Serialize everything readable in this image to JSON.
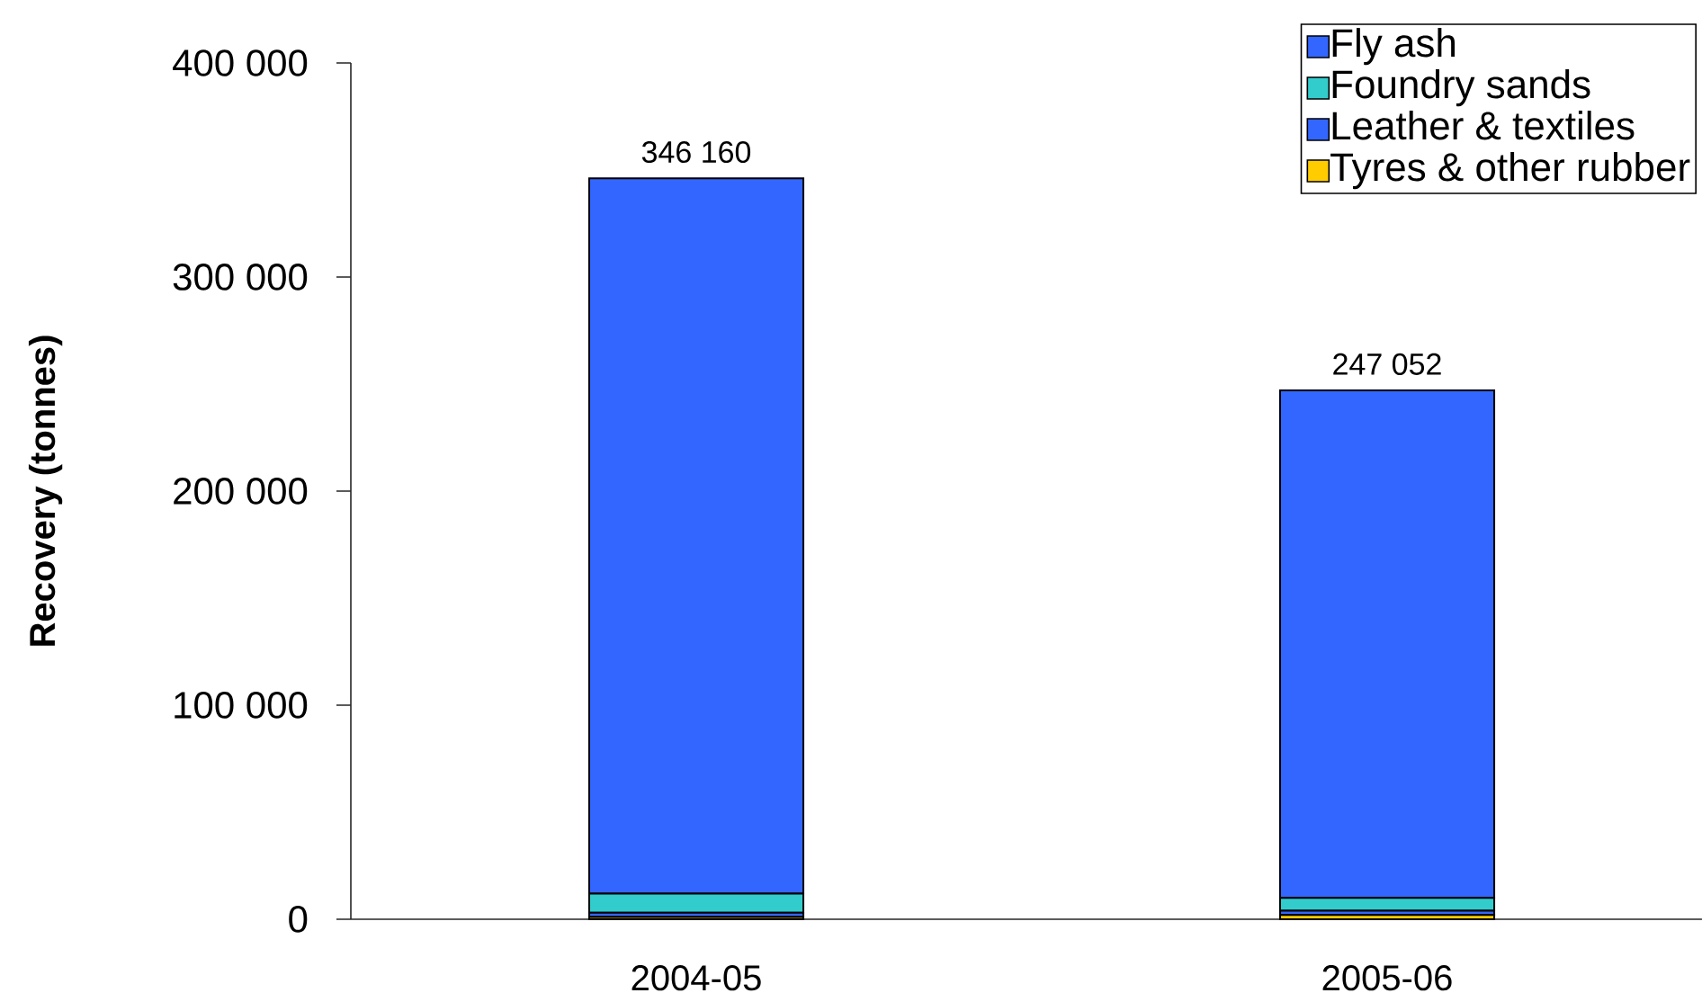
{
  "chart_data": {
    "type": "bar",
    "ylabel": "Recovery (tonnes)",
    "categories": [
      "2004-05",
      "2005-06"
    ],
    "stacked": true,
    "series": [
      {
        "name": "Tyres & other rubber",
        "color": "#ffcc00",
        "values": [
          1000,
          2000
        ]
      },
      {
        "name": "Leather & textiles",
        "color": "#3366ff",
        "values": [
          2000,
          2000
        ]
      },
      {
        "name": "Foundry sands",
        "color": "#33cccc",
        "values": [
          9000,
          6000
        ]
      },
      {
        "name": "Fly ash",
        "color": "#3366ff",
        "values": [
          334160,
          237052
        ]
      }
    ],
    "totals": [
      "346 160",
      "247 052"
    ],
    "ylim": [
      0,
      400000
    ],
    "yticks": [
      0,
      {
        "value": 100000,
        "label": "100 000"
      },
      {
        "value": 200000,
        "label": "200 000"
      },
      {
        "value": 300000,
        "label": "300 000"
      },
      {
        "value": 400000,
        "label": "400 000"
      }
    ],
    "legend": "top right",
    "grid": false
  }
}
